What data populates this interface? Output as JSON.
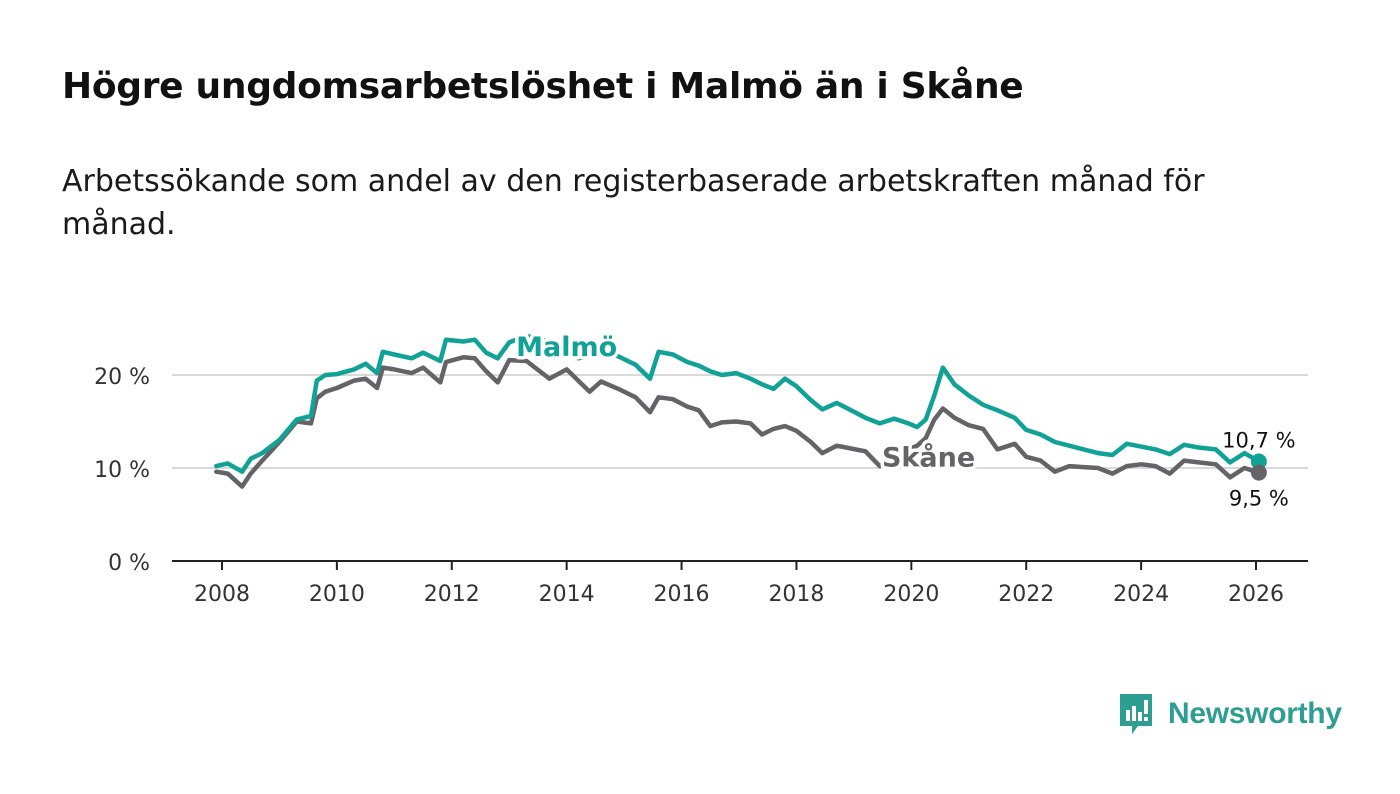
{
  "header": {
    "title": "Högre ungdomsarbetslöshet i Malmö än i Skåne",
    "subtitle": "Arbetssökande som andel av den registerbaserade arbetskraften månad för månad."
  },
  "brand": {
    "name": "Newsworthy",
    "color": "#2e9e92"
  },
  "chart_data": {
    "type": "line",
    "title": "Högre ungdomsarbetslöshet i Malmö än i Skåne",
    "subtitle": "Arbetssökande som andel av den registerbaserade arbetskraften månad för månad.",
    "xlabel": "",
    "ylabel": "",
    "xlim": [
      2007.5,
      2026.9
    ],
    "ylim": [
      0,
      25
    ],
    "x_ticks": [
      2008,
      2010,
      2012,
      2014,
      2016,
      2018,
      2020,
      2022,
      2024,
      2026
    ],
    "y_ticks": [
      0,
      10,
      20
    ],
    "y_tick_labels": [
      "0 %",
      "10 %",
      "20 %"
    ],
    "grid": true,
    "series": [
      {
        "name": "Malmö",
        "color": "#10a296",
        "end_label": "10,7 %",
        "points": [
          [
            2007.9,
            10.2
          ],
          [
            2008.1,
            10.5
          ],
          [
            2008.35,
            9.6
          ],
          [
            2008.5,
            11.0
          ],
          [
            2008.7,
            11.6
          ],
          [
            2009.0,
            13.0
          ],
          [
            2009.3,
            15.2
          ],
          [
            2009.55,
            15.6
          ],
          [
            2009.65,
            19.4
          ],
          [
            2009.8,
            20.0
          ],
          [
            2010.0,
            20.1
          ],
          [
            2010.3,
            20.6
          ],
          [
            2010.5,
            21.2
          ],
          [
            2010.7,
            20.2
          ],
          [
            2010.8,
            22.5
          ],
          [
            2011.0,
            22.2
          ],
          [
            2011.3,
            21.8
          ],
          [
            2011.5,
            22.4
          ],
          [
            2011.8,
            21.5
          ],
          [
            2011.9,
            23.8
          ],
          [
            2012.2,
            23.6
          ],
          [
            2012.4,
            23.8
          ],
          [
            2012.6,
            22.4
          ],
          [
            2012.8,
            21.8
          ],
          [
            2013.0,
            23.5
          ],
          [
            2013.3,
            24.2
          ],
          [
            2013.7,
            23.6
          ],
          [
            2014.0,
            23.0
          ],
          [
            2014.2,
            21.8
          ],
          [
            2014.4,
            22.0
          ],
          [
            2014.6,
            22.8
          ],
          [
            2014.9,
            22.0
          ],
          [
            2015.2,
            21.1
          ],
          [
            2015.45,
            19.6
          ],
          [
            2015.6,
            22.5
          ],
          [
            2015.85,
            22.2
          ],
          [
            2016.1,
            21.4
          ],
          [
            2016.3,
            21.0
          ],
          [
            2016.5,
            20.4
          ],
          [
            2016.7,
            20.0
          ],
          [
            2016.95,
            20.2
          ],
          [
            2017.2,
            19.6
          ],
          [
            2017.4,
            19.0
          ],
          [
            2017.6,
            18.5
          ],
          [
            2017.8,
            19.6
          ],
          [
            2018.0,
            18.8
          ],
          [
            2018.25,
            17.3
          ],
          [
            2018.45,
            16.3
          ],
          [
            2018.7,
            17.0
          ],
          [
            2018.95,
            16.2
          ],
          [
            2019.2,
            15.4
          ],
          [
            2019.45,
            14.8
          ],
          [
            2019.7,
            15.3
          ],
          [
            2019.95,
            14.8
          ],
          [
            2020.1,
            14.4
          ],
          [
            2020.25,
            15.2
          ],
          [
            2020.4,
            17.8
          ],
          [
            2020.55,
            20.8
          ],
          [
            2020.75,
            19.0
          ],
          [
            2021.0,
            17.8
          ],
          [
            2021.25,
            16.8
          ],
          [
            2021.5,
            16.2
          ],
          [
            2021.8,
            15.4
          ],
          [
            2022.0,
            14.1
          ],
          [
            2022.25,
            13.6
          ],
          [
            2022.5,
            12.8
          ],
          [
            2022.75,
            12.4
          ],
          [
            2023.0,
            12.0
          ],
          [
            2023.25,
            11.6
          ],
          [
            2023.5,
            11.4
          ],
          [
            2023.75,
            12.6
          ],
          [
            2024.0,
            12.3
          ],
          [
            2024.25,
            12.0
          ],
          [
            2024.5,
            11.5
          ],
          [
            2024.75,
            12.5
          ],
          [
            2025.0,
            12.2
          ],
          [
            2025.3,
            12.0
          ],
          [
            2025.55,
            10.6
          ],
          [
            2025.8,
            11.6
          ],
          [
            2026.05,
            10.7
          ]
        ]
      },
      {
        "name": "Skåne",
        "color": "#646468",
        "end_label": "9,5 %",
        "points": [
          [
            2007.9,
            9.6
          ],
          [
            2008.1,
            9.4
          ],
          [
            2008.35,
            8.0
          ],
          [
            2008.5,
            9.4
          ],
          [
            2008.7,
            10.8
          ],
          [
            2009.0,
            12.8
          ],
          [
            2009.3,
            15.0
          ],
          [
            2009.55,
            14.8
          ],
          [
            2009.65,
            17.5
          ],
          [
            2009.8,
            18.2
          ],
          [
            2010.0,
            18.6
          ],
          [
            2010.3,
            19.4
          ],
          [
            2010.5,
            19.6
          ],
          [
            2010.7,
            18.6
          ],
          [
            2010.8,
            20.8
          ],
          [
            2011.0,
            20.6
          ],
          [
            2011.3,
            20.2
          ],
          [
            2011.5,
            20.8
          ],
          [
            2011.8,
            19.2
          ],
          [
            2011.9,
            21.4
          ],
          [
            2012.2,
            21.9
          ],
          [
            2012.4,
            21.8
          ],
          [
            2012.6,
            20.4
          ],
          [
            2012.8,
            19.2
          ],
          [
            2013.0,
            21.6
          ],
          [
            2013.3,
            21.5
          ],
          [
            2013.7,
            19.6
          ],
          [
            2014.0,
            20.6
          ],
          [
            2014.2,
            19.4
          ],
          [
            2014.4,
            18.2
          ],
          [
            2014.6,
            19.3
          ],
          [
            2014.9,
            18.5
          ],
          [
            2015.2,
            17.6
          ],
          [
            2015.45,
            16.0
          ],
          [
            2015.6,
            17.6
          ],
          [
            2015.85,
            17.4
          ],
          [
            2016.1,
            16.6
          ],
          [
            2016.3,
            16.2
          ],
          [
            2016.5,
            14.5
          ],
          [
            2016.7,
            14.9
          ],
          [
            2016.95,
            15.0
          ],
          [
            2017.2,
            14.8
          ],
          [
            2017.4,
            13.6
          ],
          [
            2017.6,
            14.2
          ],
          [
            2017.8,
            14.5
          ],
          [
            2018.0,
            14.0
          ],
          [
            2018.25,
            12.8
          ],
          [
            2018.45,
            11.6
          ],
          [
            2018.7,
            12.4
          ],
          [
            2018.95,
            12.1
          ],
          [
            2019.2,
            11.8
          ],
          [
            2019.45,
            10.2
          ],
          [
            2019.7,
            11.0
          ],
          [
            2019.95,
            12.0
          ],
          [
            2020.1,
            12.4
          ],
          [
            2020.25,
            13.2
          ],
          [
            2020.4,
            15.2
          ],
          [
            2020.55,
            16.4
          ],
          [
            2020.75,
            15.4
          ],
          [
            2021.0,
            14.6
          ],
          [
            2021.25,
            14.2
          ],
          [
            2021.5,
            12.0
          ],
          [
            2021.8,
            12.6
          ],
          [
            2022.0,
            11.2
          ],
          [
            2022.25,
            10.8
          ],
          [
            2022.5,
            9.6
          ],
          [
            2022.75,
            10.2
          ],
          [
            2023.0,
            10.1
          ],
          [
            2023.25,
            10.0
          ],
          [
            2023.5,
            9.4
          ],
          [
            2023.75,
            10.2
          ],
          [
            2024.0,
            10.4
          ],
          [
            2024.25,
            10.2
          ],
          [
            2024.5,
            9.4
          ],
          [
            2024.75,
            10.8
          ],
          [
            2025.0,
            10.6
          ],
          [
            2025.3,
            10.4
          ],
          [
            2025.55,
            9.0
          ],
          [
            2025.8,
            10.0
          ],
          [
            2026.05,
            9.5
          ]
        ]
      }
    ],
    "annotations": [
      {
        "text": "Malmö",
        "series": "Malmö",
        "x": 2014.0,
        "y": 24.2
      },
      {
        "text": "Skåne",
        "series": "Skåne",
        "x": 2020.3,
        "y": 12.3
      }
    ]
  }
}
